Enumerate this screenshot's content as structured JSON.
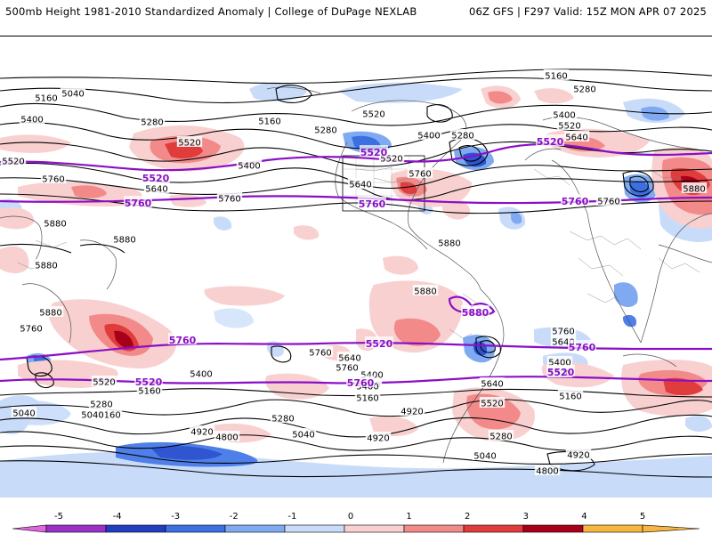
{
  "header": {
    "title": "500mb Height 1981-2010 Standardized Anomaly | College of DuPage NEXLAB",
    "run_info": "06Z GFS | F297 Valid: 15Z MON APR 07 2025"
  },
  "contour_labels": [
    {
      "text": "5160"
    },
    {
      "text": "5040"
    },
    {
      "text": "5400"
    },
    {
      "text": "5280"
    },
    {
      "text": "5520"
    },
    {
      "text": "5160"
    },
    {
      "text": "5280"
    },
    {
      "text": "5520"
    },
    {
      "text": "5400"
    },
    {
      "text": "5760"
    },
    {
      "text": "5640"
    },
    {
      "text": "5760"
    },
    {
      "text": "5880"
    },
    {
      "text": "5880"
    },
    {
      "text": "5880"
    },
    {
      "text": "5880"
    },
    {
      "text": "5520"
    },
    {
      "text": "5400"
    },
    {
      "text": "5280"
    },
    {
      "text": "5520"
    },
    {
      "text": "5640"
    },
    {
      "text": "5760"
    },
    {
      "text": "5880"
    },
    {
      "text": "5880"
    },
    {
      "text": "5160"
    },
    {
      "text": "5280"
    },
    {
      "text": "5400"
    },
    {
      "text": "5520"
    },
    {
      "text": "5640"
    },
    {
      "text": "5880"
    },
    {
      "text": "5760"
    },
    {
      "text": "5640"
    },
    {
      "text": "5760"
    },
    {
      "text": "5520"
    },
    {
      "text": "5400"
    },
    {
      "text": "5280"
    },
    {
      "text": "5160"
    },
    {
      "text": "5040"
    },
    {
      "text": "5160"
    },
    {
      "text": "5400"
    },
    {
      "text": "5520"
    },
    {
      "text": "5280"
    },
    {
      "text": "5040"
    },
    {
      "text": "4920"
    },
    {
      "text": "4800"
    },
    {
      "text": "5760"
    },
    {
      "text": "5640"
    },
    {
      "text": "5520"
    },
    {
      "text": "5400"
    },
    {
      "text": "5160"
    },
    {
      "text": "5040"
    },
    {
      "text": "4920"
    },
    {
      "text": "5640"
    },
    {
      "text": "5520"
    },
    {
      "text": "5280"
    },
    {
      "text": "5040"
    },
    {
      "text": "4800"
    },
    {
      "text": "5760"
    },
    {
      "text": "5400"
    },
    {
      "text": "5160"
    },
    {
      "text": "4920"
    },
    {
      "text": "4920"
    },
    {
      "text": "5760"
    }
  ],
  "purple_labels": [
    {
      "text": "5520"
    },
    {
      "text": "5760"
    },
    {
      "text": "5520"
    },
    {
      "text": "5760"
    },
    {
      "text": "5520"
    },
    {
      "text": "5760"
    },
    {
      "text": "5880"
    },
    {
      "text": "5760"
    },
    {
      "text": "5520"
    },
    {
      "text": "5760"
    },
    {
      "text": "5520"
    },
    {
      "text": "5760"
    },
    {
      "text": "5520"
    }
  ],
  "legend": {
    "ticks": [
      "-5",
      "-4",
      "-3",
      "-2",
      "-1",
      "0",
      "1",
      "2",
      "3",
      "4",
      "5"
    ],
    "colors": [
      "#9b30c8",
      "#1f3fbf",
      "#3c6fe0",
      "#7faaf2",
      "#c8dcf9",
      "#ffffff",
      "#f9d0d0",
      "#f38a8a",
      "#e03c3c",
      "#a8001a",
      "#f5b642"
    ]
  }
}
